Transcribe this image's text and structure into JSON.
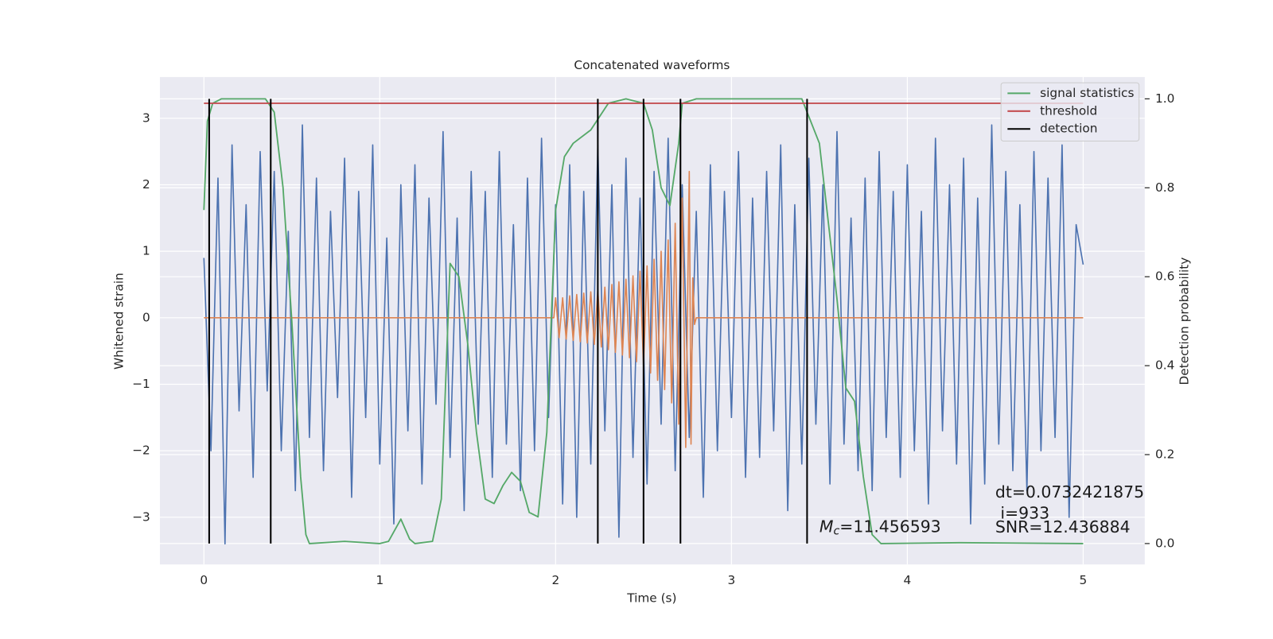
{
  "chart_data": {
    "type": "line",
    "title": "Concatenated waveforms",
    "x_label": "Time (s)",
    "y_label": "Whitened strain",
    "y2_label": "Detection probability",
    "xlim": [
      -0.25,
      5.35
    ],
    "ylim": [
      -3.71,
      3.62
    ],
    "y2lim": [
      -0.047,
      1.049
    ],
    "xticks": [
      0,
      1,
      2,
      3,
      4,
      5
    ],
    "yticks": [
      {
        "value": -3,
        "label": "−3"
      },
      {
        "value": -2,
        "label": "−2"
      },
      {
        "value": -1,
        "label": "−1"
      },
      0,
      1,
      2,
      3
    ],
    "y2ticks": [
      {
        "value": 0,
        "label": "0.0"
      },
      0.2,
      0.4,
      0.6,
      0.8,
      {
        "value": 1,
        "label": "1.0"
      }
    ],
    "grid": true,
    "legend": "upper right",
    "series": [
      {
        "color": "#4c72b0",
        "style": "line",
        "x": [
          0,
          0.04,
          0.08,
          0.12,
          0.16,
          0.2,
          0.24,
          0.28,
          0.32,
          0.36,
          0.4,
          0.44,
          0.48,
          0.52,
          0.56,
          0.6,
          0.64,
          0.68,
          0.72,
          0.76,
          0.8,
          0.84,
          0.88,
          0.92,
          0.96,
          1.0,
          1.04,
          1.08,
          1.12,
          1.16,
          1.2,
          1.24,
          1.28,
          1.32,
          1.36,
          1.4,
          1.44,
          1.48,
          1.52,
          1.56,
          1.6,
          1.64,
          1.68,
          1.72,
          1.76,
          1.8,
          1.84,
          1.88,
          1.92,
          1.96,
          2.0,
          2.04,
          2.08,
          2.12,
          2.16,
          2.2,
          2.24,
          2.28,
          2.32,
          2.36,
          2.4,
          2.44,
          2.48,
          2.52,
          2.56,
          2.6,
          2.64,
          2.68,
          2.72,
          2.76,
          2.8,
          2.84,
          2.88,
          2.92,
          2.96,
          3.0,
          3.04,
          3.08,
          3.12,
          3.16,
          3.2,
          3.24,
          3.28,
          3.32,
          3.36,
          3.4,
          3.44,
          3.48,
          3.52,
          3.56,
          3.6,
          3.64,
          3.68,
          3.72,
          3.76,
          3.8,
          3.84,
          3.88,
          3.92,
          3.96,
          4.0,
          4.04,
          4.08,
          4.12,
          4.16,
          4.2,
          4.24,
          4.28,
          4.32,
          4.36,
          4.4,
          4.44,
          4.48,
          4.52,
          4.56,
          4.6,
          4.64,
          4.68,
          4.72,
          4.76,
          4.8,
          4.84,
          4.88,
          4.92,
          4.96,
          5.0
        ],
        "values": [
          0.9,
          -2.0,
          2.1,
          -3.4,
          2.6,
          -1.4,
          1.7,
          -2.4,
          2.5,
          -1.1,
          2.2,
          -2.0,
          1.3,
          -2.6,
          2.9,
          -1.8,
          2.1,
          -2.3,
          1.6,
          -1.2,
          2.4,
          -2.7,
          1.9,
          -1.5,
          2.6,
          -2.2,
          1.2,
          -3.1,
          2.0,
          -1.7,
          2.3,
          -2.5,
          1.8,
          -1.3,
          2.8,
          -2.1,
          1.5,
          -2.9,
          2.2,
          -1.6,
          1.9,
          -2.4,
          2.5,
          -1.9,
          1.4,
          -2.6,
          2.1,
          -2.0,
          2.7,
          -1.5,
          1.7,
          -2.8,
          2.3,
          -3.0,
          1.9,
          -2.2,
          2.6,
          -1.7,
          2.0,
          -3.3,
          2.4,
          -2.1,
          1.8,
          -2.5,
          2.2,
          -1.6,
          2.7,
          -2.3,
          2.0,
          -1.8,
          1.6,
          -2.7,
          2.3,
          -2.0,
          1.9,
          -1.5,
          2.5,
          -2.4,
          1.8,
          -2.1,
          2.2,
          -1.7,
          2.6,
          -2.9,
          1.7,
          -2.2,
          2.4,
          -1.6,
          2.0,
          -2.5,
          2.8,
          -1.9,
          1.5,
          -2.3,
          2.1,
          -2.6,
          2.5,
          -1.8,
          1.9,
          -2.4,
          2.3,
          -2.0,
          1.6,
          -2.8,
          2.7,
          -1.7,
          2.0,
          -2.2,
          2.4,
          -3.1,
          1.8,
          -2.5,
          2.9,
          -1.9,
          2.2,
          -2.3,
          1.7,
          -2.6,
          2.5,
          -2.0,
          2.1,
          -1.8,
          2.6,
          -3.0,
          1.4,
          0.8
        ]
      },
      {
        "color": "#dd8452",
        "style": "line",
        "x": [
          0,
          1.99,
          2.0,
          2.02,
          2.04,
          2.06,
          2.08,
          2.1,
          2.12,
          2.14,
          2.16,
          2.18,
          2.2,
          2.22,
          2.24,
          2.26,
          2.28,
          2.3,
          2.32,
          2.34,
          2.36,
          2.38,
          2.4,
          2.42,
          2.44,
          2.46,
          2.48,
          2.5,
          2.52,
          2.54,
          2.56,
          2.58,
          2.6,
          2.62,
          2.64,
          2.66,
          2.68,
          2.7,
          2.72,
          2.74,
          2.76,
          2.77,
          2.78,
          2.79,
          2.8,
          5.0
        ],
        "values": [
          0,
          0,
          0.3,
          -0.3,
          0.3,
          -0.32,
          0.33,
          -0.34,
          0.35,
          -0.36,
          0.37,
          -0.38,
          0.39,
          -0.4,
          0.42,
          -0.44,
          0.46,
          -0.48,
          0.5,
          -0.52,
          0.54,
          -0.56,
          0.58,
          -0.6,
          0.63,
          -0.66,
          0.7,
          -0.74,
          0.78,
          -0.83,
          0.88,
          -0.94,
          1.0,
          -1.08,
          1.17,
          -1.28,
          1.42,
          -1.6,
          1.8,
          -1.95,
          2.2,
          -1.9,
          0.6,
          -0.1,
          0,
          0
        ]
      },
      {
        "name": "signal statistics",
        "color": "#55a868",
        "style": "line",
        "axis": "y2",
        "x": [
          0,
          0.02,
          0.05,
          0.1,
          0.35,
          0.4,
          0.45,
          0.5,
          0.55,
          0.58,
          0.6,
          0.8,
          1.0,
          1.05,
          1.12,
          1.17,
          1.2,
          1.3,
          1.35,
          1.4,
          1.45,
          1.5,
          1.55,
          1.6,
          1.65,
          1.7,
          1.75,
          1.8,
          1.85,
          1.9,
          1.95,
          2.0,
          2.05,
          2.1,
          2.2,
          2.3,
          2.4,
          2.5,
          2.55,
          2.6,
          2.65,
          2.7,
          2.72,
          2.8,
          3.4,
          3.5,
          3.6,
          3.65,
          3.7,
          3.75,
          3.8,
          3.85,
          4.3,
          5.0
        ],
        "values": [
          0.75,
          0.95,
          0.99,
          1.0,
          1.0,
          0.97,
          0.8,
          0.5,
          0.15,
          0.02,
          0.0,
          0.005,
          0.0,
          0.005,
          0.055,
          0.01,
          0.0,
          0.005,
          0.1,
          0.63,
          0.6,
          0.45,
          0.25,
          0.1,
          0.09,
          0.13,
          0.16,
          0.14,
          0.07,
          0.06,
          0.25,
          0.75,
          0.87,
          0.9,
          0.93,
          0.99,
          1.0,
          0.99,
          0.93,
          0.8,
          0.76,
          0.9,
          0.99,
          1.0,
          1.0,
          0.9,
          0.55,
          0.35,
          0.32,
          0.15,
          0.02,
          0.0,
          0.002,
          0.0
        ]
      },
      {
        "name": "threshold",
        "color": "#c44e52",
        "style": "line",
        "axis": "y2",
        "x": [
          0,
          5.0
        ],
        "values": [
          0.99,
          0.99
        ]
      },
      {
        "name": "detection",
        "color": "#000000",
        "style": "vlines",
        "axis": "y2",
        "x": [
          0.03,
          0.38,
          2.24,
          2.5,
          2.71,
          3.43
        ],
        "values": [
          1,
          1,
          1,
          1,
          1,
          1
        ]
      }
    ],
    "annotations": {
      "chirp_mass": {
        "symbol": "M",
        "subscript": "c",
        "text": "=11.456593"
      },
      "dt": "dt=0.0732421875",
      "index": " i=933",
      "snr": "SNR=12.436884"
    }
  }
}
